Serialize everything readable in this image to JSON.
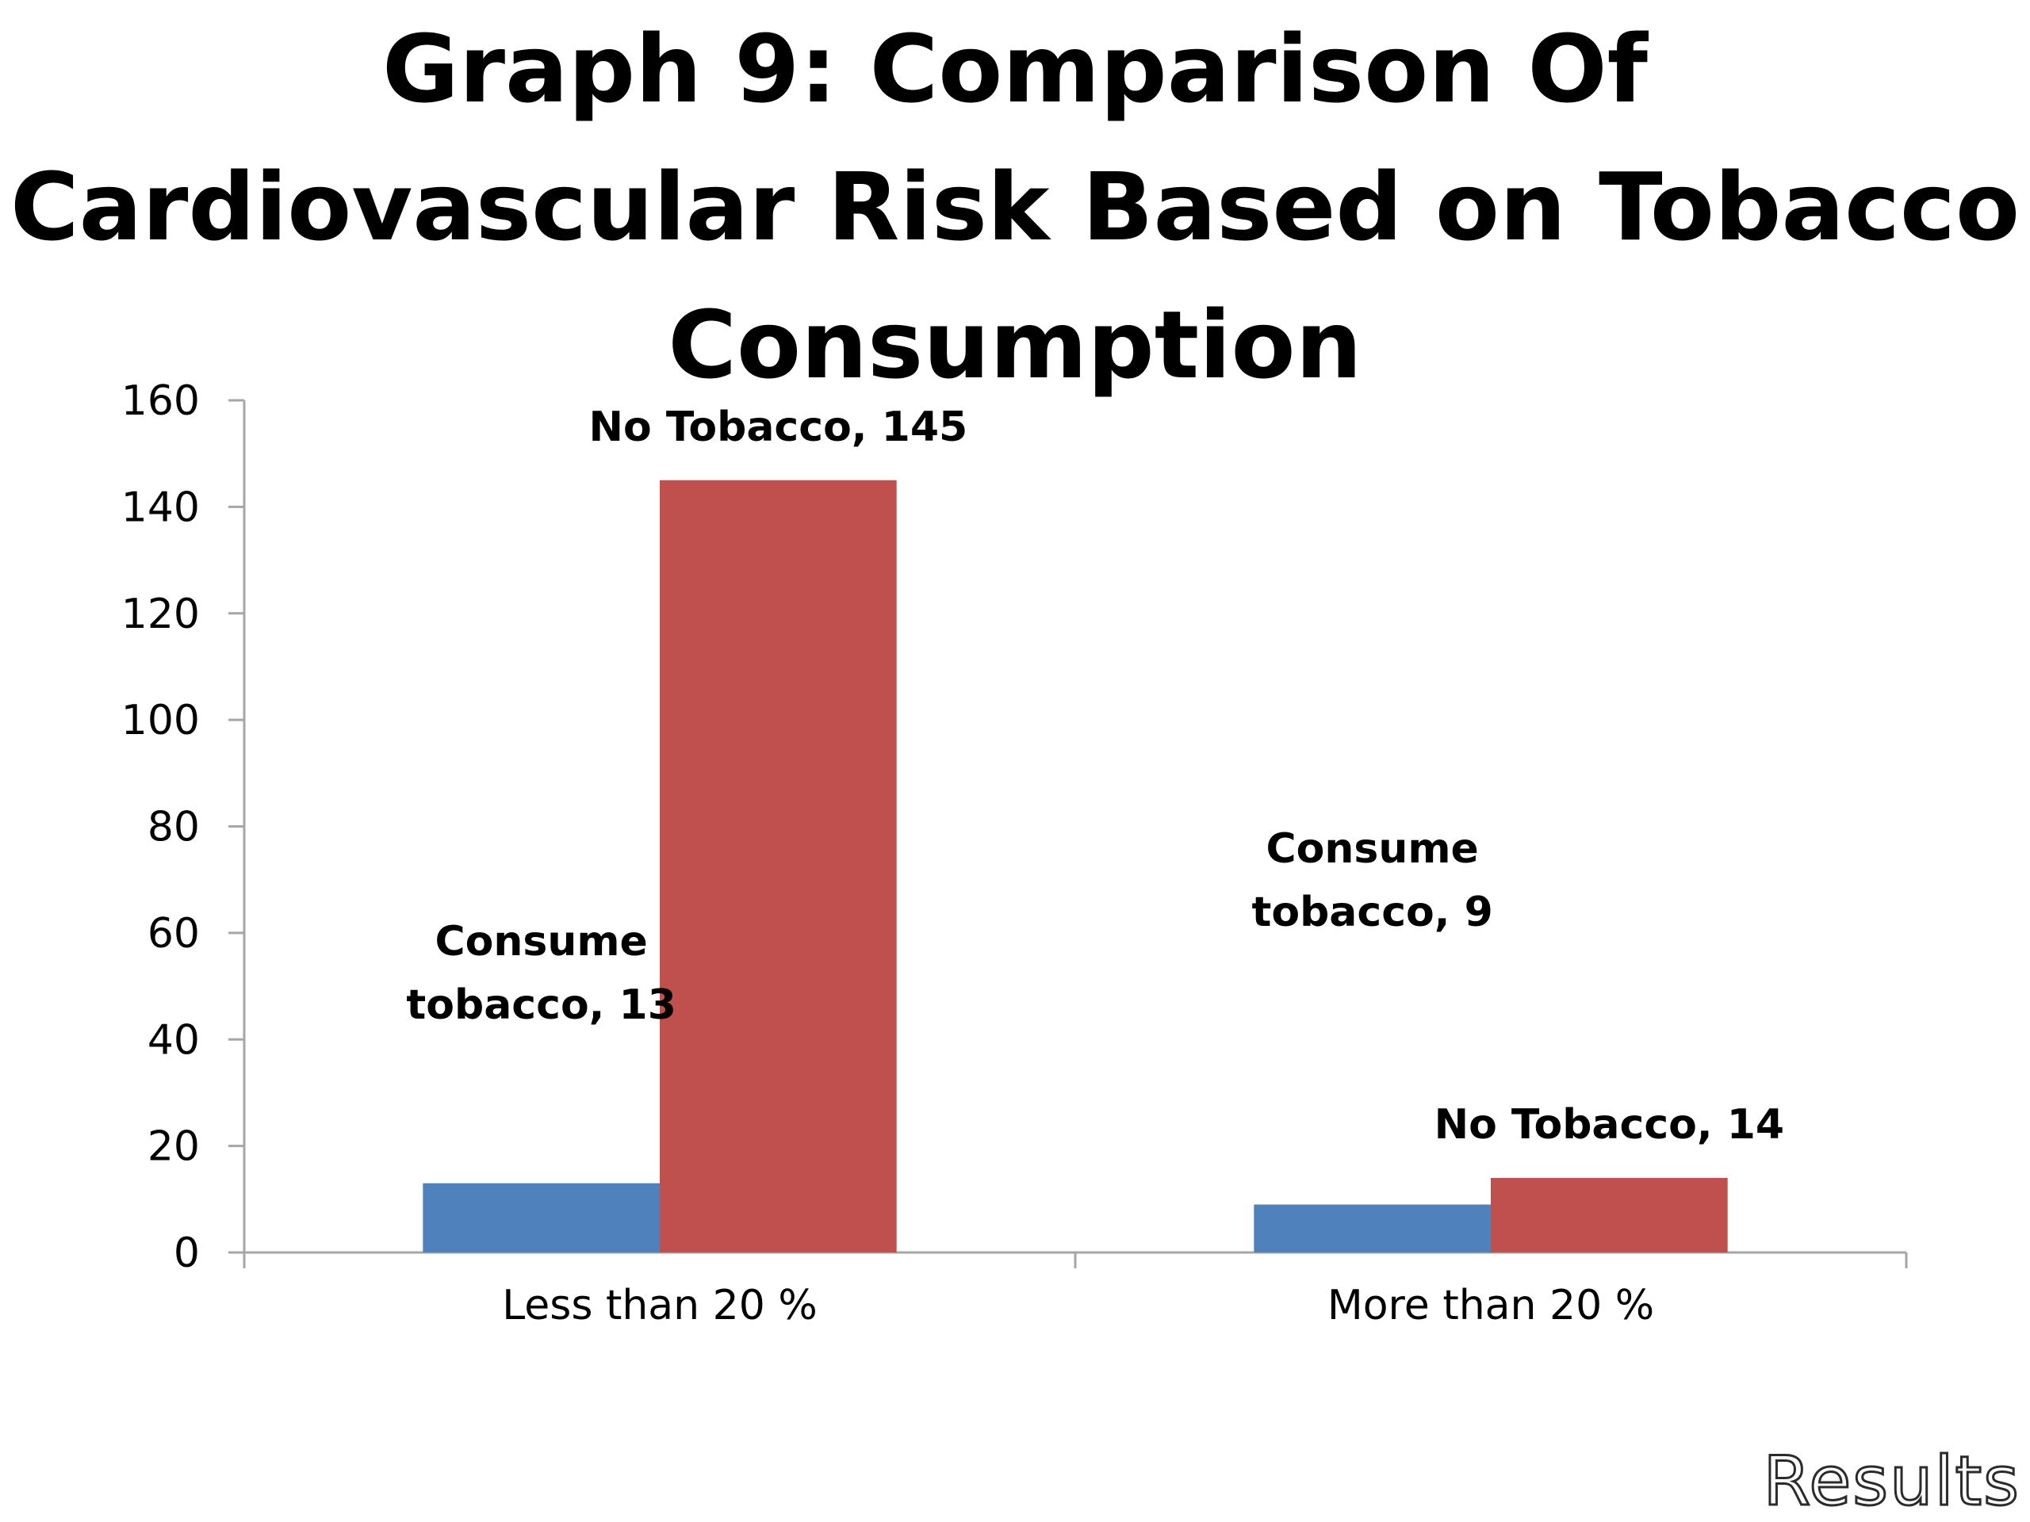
{
  "slide": {
    "footer_label": "Results"
  },
  "chart_data": {
    "type": "bar",
    "title_lines": [
      "Graph 9: Comparison Of",
      "Cardiovascular Risk Based on Tobacco",
      "Consumption"
    ],
    "categories": [
      "Less than 20 %",
      "More than 20 %"
    ],
    "series": [
      {
        "name": "Consume tobacco",
        "color": "#4F81BD",
        "values": [
          13,
          9
        ],
        "data_labels": [
          [
            "Consume",
            "tobacco, 13"
          ],
          [
            "Consume",
            "tobacco, 9"
          ]
        ]
      },
      {
        "name": "No Tobacco",
        "color": "#C0504D",
        "values": [
          145,
          14
        ],
        "data_labels": [
          [
            "No Tobacco, 145"
          ],
          [
            "No Tobacco, 14"
          ]
        ]
      }
    ],
    "ylim": [
      0,
      160
    ],
    "yticks": [
      0,
      20,
      40,
      60,
      80,
      100,
      120,
      140,
      160
    ],
    "xlabel": "",
    "ylabel": "",
    "grid": false,
    "legend": "none",
    "axis_color": "#A6A6A6"
  }
}
